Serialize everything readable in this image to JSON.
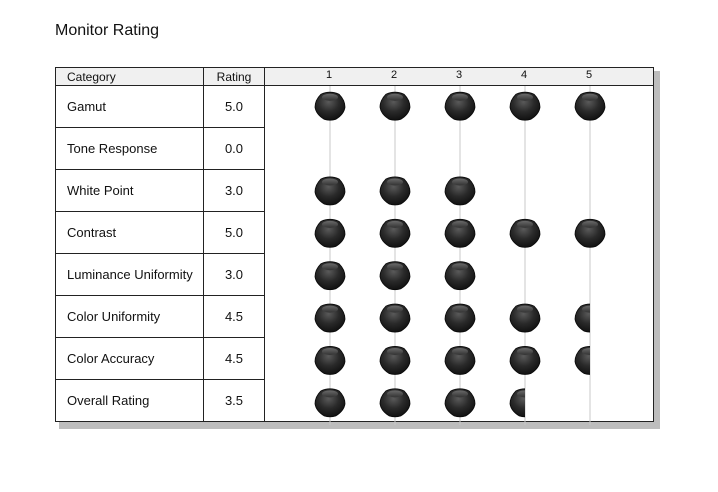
{
  "title": "Monitor Rating",
  "columns": {
    "category": "Category",
    "rating": "Rating"
  },
  "chart_data": {
    "type": "table",
    "scale": [
      "1",
      "2",
      "3",
      "4",
      "5"
    ],
    "max": 5,
    "rows": [
      {
        "category": "Gamut",
        "rating_text": "5.0",
        "rating": 5.0
      },
      {
        "category": "Tone Response",
        "rating_text": "0.0",
        "rating": 0.0
      },
      {
        "category": "White Point",
        "rating_text": "3.0",
        "rating": 3.0
      },
      {
        "category": "Contrast",
        "rating_text": "5.0",
        "rating": 5.0
      },
      {
        "category": "Luminance Uniformity",
        "rating_text": "3.0",
        "rating": 3.0
      },
      {
        "category": "Color Uniformity",
        "rating_text": "4.5",
        "rating": 4.5
      },
      {
        "category": "Color Accuracy",
        "rating_text": "4.5",
        "rating": 4.5
      },
      {
        "category": "Overall Rating",
        "rating_text": "3.5",
        "rating": 3.5
      }
    ],
    "marker_color": "#1e1e1e",
    "gridline_color": "#c8c8c8"
  }
}
